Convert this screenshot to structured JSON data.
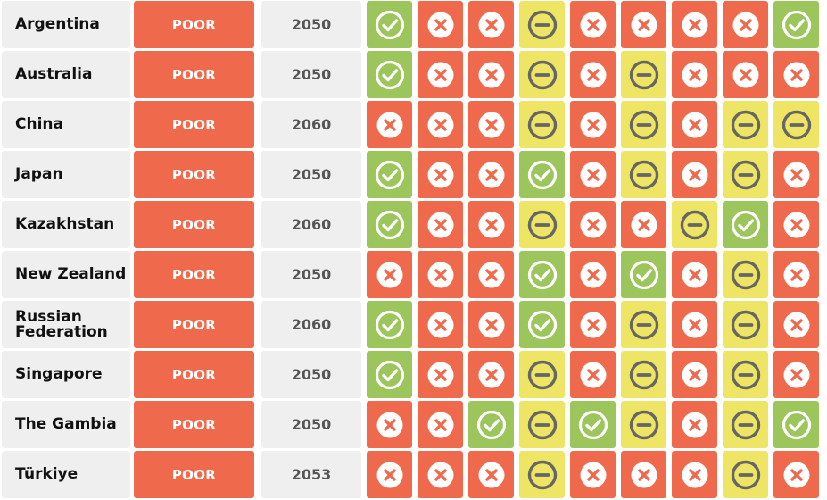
{
  "colors": {
    "poor": "#ef6a4c",
    "green": "#9cc65c",
    "yellow": "#efe564",
    "red": "#ef6a4c",
    "neutral_bg": "#efefef"
  },
  "rows": [
    {
      "country": "Argentina",
      "rating": "POOR",
      "year": "2050",
      "statuses": [
        "check-icon",
        "cross-icon",
        "cross-icon",
        "minus-icon",
        "cross-icon",
        "cross-icon",
        "cross-icon",
        "cross-icon",
        "check-icon"
      ]
    },
    {
      "country": "Australia",
      "rating": "POOR",
      "year": "2050",
      "statuses": [
        "check-icon",
        "cross-icon",
        "cross-icon",
        "minus-icon",
        "cross-icon",
        "minus-icon",
        "cross-icon",
        "cross-icon",
        "cross-icon"
      ]
    },
    {
      "country": "China",
      "rating": "POOR",
      "year": "2060",
      "statuses": [
        "cross-icon",
        "cross-icon",
        "cross-icon",
        "minus-icon",
        "cross-icon",
        "minus-icon",
        "cross-icon",
        "minus-icon",
        "minus-icon"
      ]
    },
    {
      "country": "Japan",
      "rating": "POOR",
      "year": "2050",
      "statuses": [
        "check-icon",
        "cross-icon",
        "cross-icon",
        "check-icon",
        "cross-icon",
        "minus-icon",
        "cross-icon",
        "minus-icon",
        "cross-icon"
      ]
    },
    {
      "country": "Kazakhstan",
      "rating": "POOR",
      "year": "2060",
      "statuses": [
        "check-icon",
        "cross-icon",
        "cross-icon",
        "minus-icon",
        "cross-icon",
        "cross-icon",
        "minus-icon",
        "check-icon",
        "cross-icon"
      ]
    },
    {
      "country": "New Zealand",
      "rating": "POOR",
      "year": "2050",
      "statuses": [
        "cross-icon",
        "cross-icon",
        "cross-icon",
        "check-icon",
        "cross-icon",
        "check-icon",
        "cross-icon",
        "minus-icon",
        "cross-icon"
      ]
    },
    {
      "country": "Russian Federation",
      "rating": "POOR",
      "year": "2060",
      "statuses": [
        "check-icon",
        "cross-icon",
        "cross-icon",
        "check-icon",
        "cross-icon",
        "minus-icon",
        "cross-icon",
        "minus-icon",
        "cross-icon"
      ]
    },
    {
      "country": "Singapore",
      "rating": "POOR",
      "year": "2050",
      "statuses": [
        "check-icon",
        "cross-icon",
        "cross-icon",
        "minus-icon",
        "cross-icon",
        "minus-icon",
        "cross-icon",
        "minus-icon",
        "cross-icon"
      ]
    },
    {
      "country": "The Gambia",
      "rating": "POOR",
      "year": "2050",
      "statuses": [
        "cross-icon",
        "cross-icon",
        "check-icon",
        "minus-icon",
        "check-icon",
        "minus-icon",
        "cross-icon",
        "minus-icon",
        "check-icon"
      ]
    },
    {
      "country": "Türkiye",
      "rating": "POOR",
      "year": "2053",
      "statuses": [
        "cross-icon",
        "cross-icon",
        "cross-icon",
        "minus-icon",
        "cross-icon",
        "cross-icon",
        "cross-icon",
        "minus-icon",
        "cross-icon"
      ]
    }
  ]
}
